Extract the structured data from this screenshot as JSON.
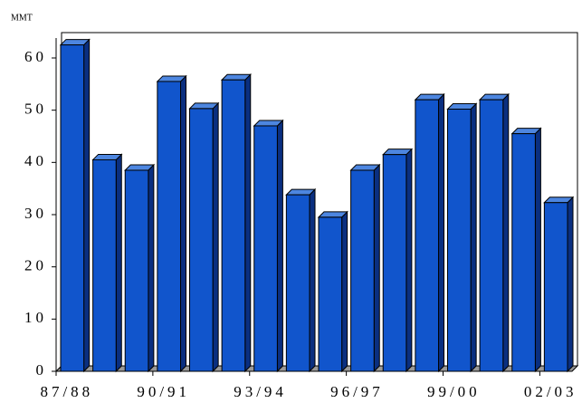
{
  "chart_data": {
    "type": "bar",
    "y_label": "MMT",
    "categories": [
      "87/88",
      null,
      null,
      "90/91",
      null,
      null,
      "93/94",
      null,
      null,
      "96/97",
      null,
      null,
      "99/00",
      null,
      null,
      "02/03"
    ],
    "values": [
      62.5,
      40.5,
      38.5,
      55.5,
      50.3,
      55.8,
      47,
      33.8,
      29.5,
      38.5,
      41.5,
      52,
      50.2,
      52,
      45.5,
      32.3
    ],
    "color": "#1155cc",
    "ylim": [
      0,
      60
    ],
    "yticks": [
      0,
      10,
      20,
      30,
      40,
      50,
      60
    ]
  }
}
